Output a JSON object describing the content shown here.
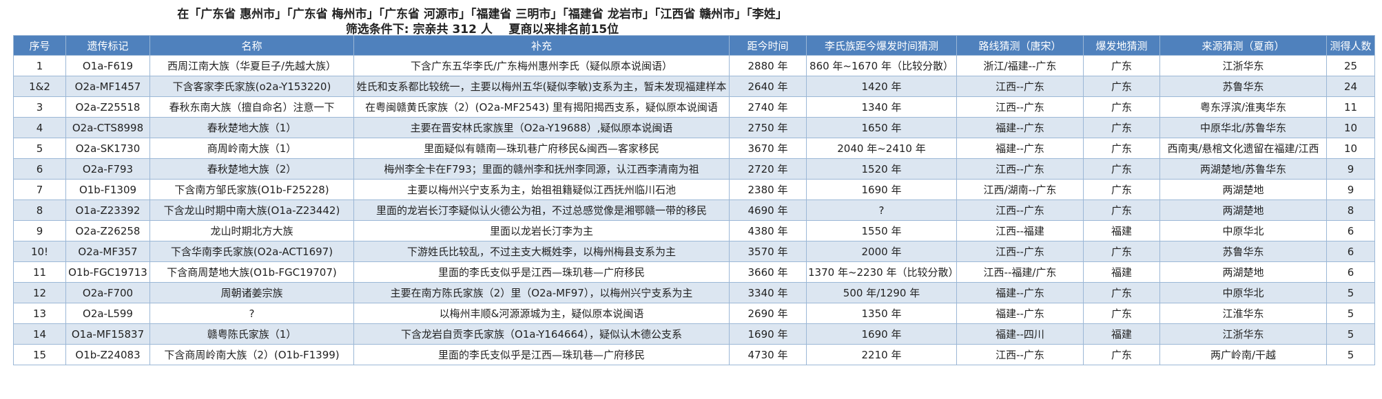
{
  "header": {
    "title": [
      "在「广东省 惠州市」「广东省 梅州市」「广东省 河源市」「福建省 三明市」「福建省 龙岩市」「江西省 赣州市」「李姓」",
      "筛选条件下: 宗亲共 312 人    夏商以来排名前15位"
    ]
  },
  "table": {
    "columns": [
      "序号",
      "遗传标记",
      "名称",
      "补充",
      "距今时间",
      "李氏族距今爆发时间猜测",
      "路线猜测（唐宋）",
      "爆发地猜测",
      "来源猜测（夏商）",
      "测得人数"
    ],
    "rows": [
      [
        "1",
        "O1a-F619",
        "西周江南大族（华夏巨子/先越大族）",
        "下含广东五华李氏/广东梅州惠州李氏（疑似原本说闽语）",
        "2880 年",
        "860 年~1670 年（比较分散）",
        "浙江/福建--广东",
        "广东",
        "江浙华东",
        "25"
      ],
      [
        "1&2",
        "O2a-MF1457",
        "下含客家李氏家族(o2a-Y153220)",
        "姓氏和支系都比较统一，主要以梅州五华(疑似李敏)支系为主，暂未发现福建样本",
        "2640 年",
        "1420 年",
        "江西--广东",
        "广东",
        "苏鲁华东",
        "24"
      ],
      [
        "3",
        "O2a-Z25518",
        "春秋东南大族（擅自命名）注意一下",
        "在粤闽赣黄氏家族（2）(O2a-MF2543) 里有揭阳揭西支系，疑似原本说闽语",
        "2740 年",
        "1340 年",
        "江西--广东",
        "广东",
        "粤东浮滨/淮夷华东",
        "11"
      ],
      [
        "4",
        "O2a-CTS8998",
        "春秋楚地大族（1）",
        "主要在晋安林氏家族里（O2a-Y19688）,疑似原本说闽语",
        "2750 年",
        "1650 年",
        "福建--广东",
        "广东",
        "中原华北/苏鲁华东",
        "10"
      ],
      [
        "5",
        "O2a-SK1730",
        "商周岭南大族（1）",
        "里面疑似有赣南—珠玑巷广府移民&闽西—客家移民",
        "3670 年",
        "2040 年~2410 年",
        "福建--广东",
        "广东",
        "西南夷/悬棺文化遗留在福建/江西",
        "10"
      ],
      [
        "6",
        "O2a-F793",
        "春秋楚地大族（2）",
        "梅州李全卡在F793；里面的赣州李和抚州李同源，认江西李清南为祖",
        "2720 年",
        "1520 年",
        "江西--广东",
        "广东",
        "两湖楚地/苏鲁华东",
        "9"
      ],
      [
        "7",
        "O1b-F1309",
        "下含南方邹氏家族(O1b-F25228)",
        "主要以梅州兴宁支系为主，始祖祖籍疑似江西抚州临川石池",
        "2380 年",
        "1690 年",
        "江西/湖南--广东",
        "广东",
        "两湖楚地",
        "9"
      ],
      [
        "8",
        "O1a-Z23392",
        "下含龙山时期中南大族(O1a-Z23442)",
        "里面的龙岩长汀李疑似认火德公为祖，不过总感觉像是湘鄂赣一带的移民",
        "4690 年",
        "?",
        "江西--广东",
        "广东",
        "两湖楚地",
        "8"
      ],
      [
        "9",
        "O2a-Z26258",
        "龙山时期北方大族",
        "里面以龙岩长汀李为主",
        "4380 年",
        "1550 年",
        "江西--福建",
        "福建",
        "中原华北",
        "6"
      ],
      [
        "10!",
        "O2a-MF357",
        "下含华南李氏家族(O2a-ACT1697)",
        "下游姓氏比较乱，不过主支大概姓李，以梅州梅县支系为主",
        "3570 年",
        "2000 年",
        "江西--广东",
        "广东",
        "苏鲁华东",
        "6"
      ],
      [
        "11",
        "O1b-FGC19713",
        "下含商周楚地大族(O1b-FGC19707)",
        "里面的李氏支似乎是江西—珠玑巷—广府移民",
        "3660 年",
        "1370 年~2230 年（比较分散）",
        "江西--福建/广东",
        "福建",
        "两湖楚地",
        "6"
      ],
      [
        "12",
        "O2a-F700",
        "周朝诸姜宗族",
        "主要在南方陈氏家族（2）里（O2a-MF97），以梅州兴宁支系为主",
        "3340 年",
        "500 年/1290 年",
        "福建--广东",
        "广东",
        "中原华北",
        "5"
      ],
      [
        "13",
        "O2a-L599",
        "?",
        "以梅州丰顺&河源源城为主，疑似原本说闽语",
        "2690 年",
        "1350 年",
        "福建--广东",
        "广东",
        "江淮华东",
        "5"
      ],
      [
        "14",
        "O1a-MF15837",
        "赣粤陈氏家族（1）",
        "下含龙岩自贡李氏家族（O1a-Y164664），疑似认木德公支系",
        "1690 年",
        "1690 年",
        "福建--四川",
        "福建",
        "江浙华东",
        "5"
      ],
      [
        "15",
        "O1b-Z24083",
        "下含商周岭南大族（2）(O1b-F1399)",
        "里面的李氏支似乎是江西—珠玑巷—广府移民",
        "4730 年",
        "2210 年",
        "江西--广东",
        "广东",
        "两广岭南/干越",
        "5"
      ]
    ]
  }
}
